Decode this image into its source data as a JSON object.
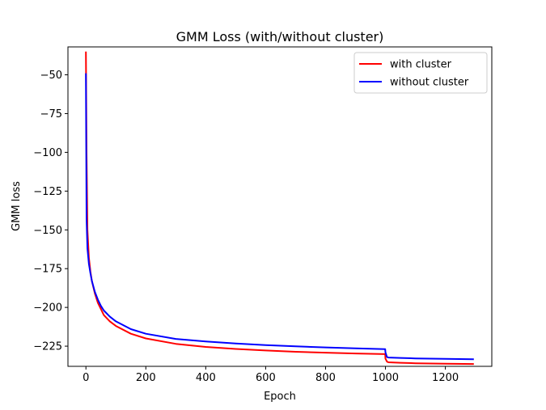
{
  "chart_data": {
    "type": "line",
    "title": "GMM Loss (with/without cluster)",
    "xlabel": "Epoch",
    "ylabel": "GMM loss",
    "xlim": [
      -60,
      1355
    ],
    "ylim": [
      -238,
      -32
    ],
    "xticks": [
      0,
      200,
      400,
      600,
      800,
      1000,
      1200
    ],
    "yticks": [
      -50,
      -75,
      -100,
      -125,
      -150,
      -175,
      -200,
      -225
    ],
    "xtick_labels": [
      "0",
      "200",
      "400",
      "600",
      "800",
      "1000",
      "1200"
    ],
    "ytick_labels": [
      "−50",
      "−75",
      "−100",
      "−125",
      "−150",
      "−175",
      "−200",
      "−225"
    ],
    "grid": false,
    "legend_position": "top-right",
    "series": [
      {
        "name": "with cluster",
        "color": "#ff0000",
        "x": [
          0,
          2,
          5,
          10,
          15,
          20,
          30,
          40,
          50,
          60,
          80,
          100,
          150,
          200,
          300,
          400,
          500,
          600,
          700,
          800,
          900,
          999,
          1000,
          1005,
          1010,
          1050,
          1100,
          1200,
          1295
        ],
        "y": [
          -35,
          -100,
          -150,
          -168,
          -177,
          -183,
          -191,
          -197,
          -201,
          -205,
          -209,
          -212,
          -217,
          -220,
          -223.5,
          -225.5,
          -226.8,
          -227.8,
          -228.6,
          -229.2,
          -229.7,
          -230.1,
          -233,
          -235,
          -235.4,
          -235.7,
          -236,
          -236.3,
          -236.5
        ]
      },
      {
        "name": "without cluster",
        "color": "#0000ff",
        "x": [
          0,
          2,
          5,
          10,
          15,
          20,
          30,
          40,
          50,
          60,
          80,
          100,
          150,
          200,
          300,
          400,
          500,
          600,
          700,
          800,
          900,
          999,
          1000,
          1005,
          1010,
          1050,
          1100,
          1200,
          1295
        ],
        "y": [
          -49,
          -143,
          -162,
          -172,
          -178,
          -183,
          -190,
          -195,
          -199,
          -202,
          -206,
          -209,
          -214,
          -217,
          -220.3,
          -222,
          -223.3,
          -224.3,
          -225.1,
          -225.8,
          -226.4,
          -226.9,
          -229,
          -232,
          -232.3,
          -232.6,
          -232.9,
          -233.2,
          -233.4
        ]
      }
    ]
  }
}
